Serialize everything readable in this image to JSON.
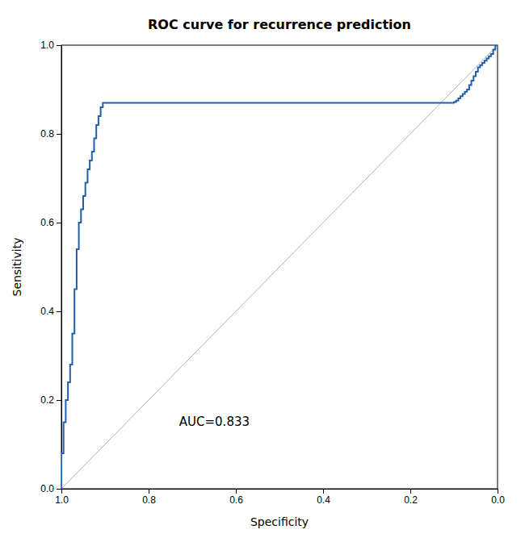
{
  "chart_data": {
    "type": "line",
    "title": "ROC curve for recurrence prediction",
    "xlabel": "Specificity",
    "ylabel": "Sensitivity",
    "series": [
      {
        "color": "#b0b0b0",
        "line_style": "solid",
        "x": [
          1.0,
          0.0
        ],
        "values": [
          0.0,
          1.0
        ]
      },
      {
        "color": "#1f5fad",
        "line_style": "step",
        "x": [
          1.0,
          1.0,
          1.0,
          1.0,
          1.0,
          0.995,
          0.995,
          0.995,
          0.995,
          0.99,
          0.99,
          0.99,
          0.985,
          0.985,
          0.98,
          0.98,
          0.975,
          0.975,
          0.97,
          0.97,
          0.965,
          0.965,
          0.96,
          0.96,
          0.955,
          0.95,
          0.945,
          0.94,
          0.935,
          0.93,
          0.925,
          0.92,
          0.915,
          0.91,
          0.905,
          0.9,
          0.1,
          0.095,
          0.09,
          0.085,
          0.08,
          0.075,
          0.07,
          0.065,
          0.06,
          0.055,
          0.05,
          0.045,
          0.04,
          0.035,
          0.03,
          0.025,
          0.02,
          0.015,
          0.01,
          0.005,
          0.0
        ],
        "values": [
          0.0,
          0.01,
          0.03,
          0.05,
          0.07,
          0.08,
          0.1,
          0.12,
          0.14,
          0.15,
          0.16,
          0.18,
          0.2,
          0.22,
          0.24,
          0.26,
          0.28,
          0.3,
          0.35,
          0.4,
          0.45,
          0.5,
          0.54,
          0.57,
          0.6,
          0.63,
          0.66,
          0.69,
          0.72,
          0.74,
          0.76,
          0.79,
          0.82,
          0.84,
          0.86,
          0.87,
          0.87,
          0.872,
          0.875,
          0.88,
          0.885,
          0.89,
          0.895,
          0.9,
          0.91,
          0.92,
          0.93,
          0.94,
          0.95,
          0.955,
          0.96,
          0.965,
          0.97,
          0.975,
          0.98,
          0.99,
          1.0
        ]
      }
    ],
    "annotations": [
      {
        "text": "AUC=0.833"
      }
    ],
    "xlim": [
      1.0,
      0.0
    ],
    "ylim": [
      0.0,
      1.0
    ],
    "xticks": [
      {
        "value": 1.0,
        "label": "1.0"
      },
      {
        "value": 0.8,
        "label": "0.8"
      },
      {
        "value": 0.6,
        "label": "0.6"
      },
      {
        "value": 0.4,
        "label": "0.4"
      },
      {
        "value": 0.2,
        "label": "0.2"
      },
      {
        "value": 0.0,
        "label": "0.0"
      }
    ],
    "yticks": [
      {
        "value": 0.0,
        "label": "0.0"
      },
      {
        "value": 0.2,
        "label": "0.2"
      },
      {
        "value": 0.4,
        "label": "0.4"
      },
      {
        "value": 0.6,
        "label": "0.6"
      },
      {
        "value": 0.8,
        "label": "0.8"
      },
      {
        "value": 1.0,
        "label": "1.0"
      }
    ],
    "grid": false
  }
}
